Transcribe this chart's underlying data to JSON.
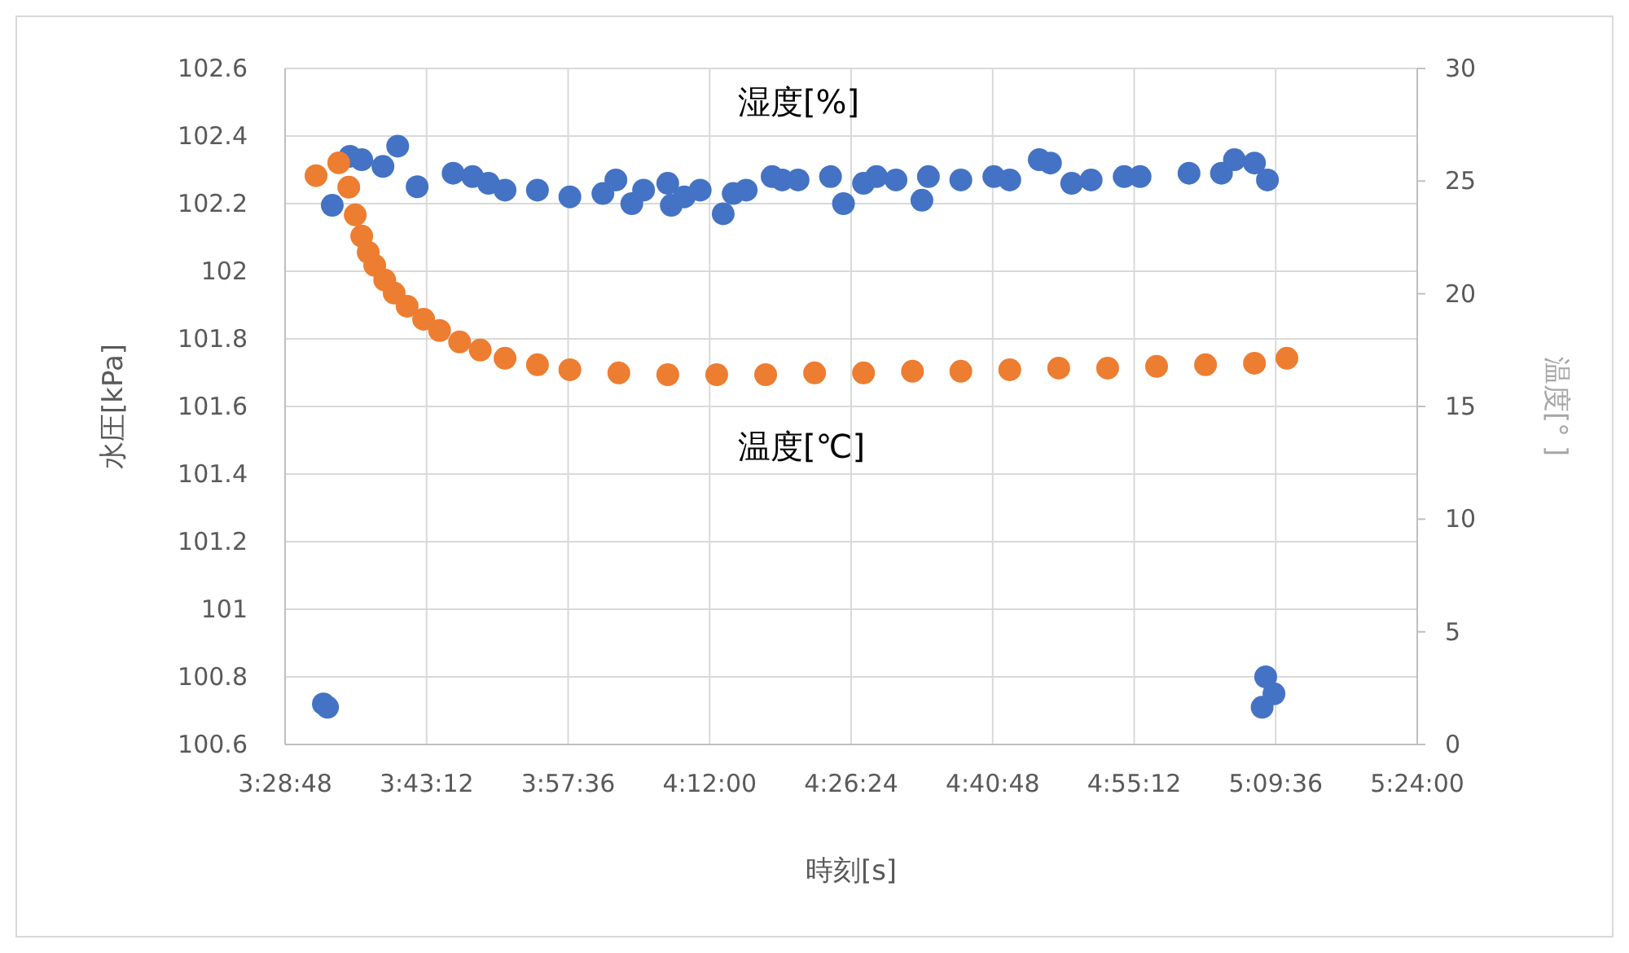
{
  "chart_data": {
    "type": "scatter",
    "xlabel": "時刻[s]",
    "ylabel": "水圧[kPa]",
    "y2label": "温度[° ]",
    "xlim": [
      3.48,
      5.4
    ],
    "xticks": [
      {
        "value": 3.48,
        "label": "3:28:48"
      },
      {
        "value": 3.72,
        "label": "3:43:12"
      },
      {
        "value": 3.96,
        "label": "3:57:36"
      },
      {
        "value": 4.2,
        "label": "4:12:00"
      },
      {
        "value": 4.44,
        "label": "4:26:24"
      },
      {
        "value": 4.68,
        "label": "4:40:48"
      },
      {
        "value": 4.92,
        "label": "4:55:12"
      },
      {
        "value": 5.16,
        "label": "5:09:36"
      },
      {
        "value": 5.4,
        "label": "5:24:00"
      }
    ],
    "ylim": [
      100.6,
      102.6
    ],
    "yticks": [
      100.6,
      100.8,
      101,
      101.2,
      101.4,
      101.6,
      101.8,
      102,
      102.2,
      102.4,
      102.6
    ],
    "y2lim": [
      0,
      30
    ],
    "y2ticks": [
      0,
      5,
      10,
      15,
      20,
      25,
      30
    ],
    "grid": true,
    "marker": "circle",
    "series": [
      {
        "name": "湿度[%]",
        "color": "#4472c4",
        "x": [
          3.545,
          3.552,
          3.56,
          3.59,
          3.61,
          3.646,
          3.671,
          3.704,
          3.765,
          3.798,
          3.825,
          3.853,
          3.908,
          3.963,
          4.019,
          4.041,
          4.068,
          4.088,
          4.129,
          4.135,
          4.157,
          4.184,
          4.223,
          4.24,
          4.262,
          4.306,
          4.323,
          4.35,
          4.405,
          4.427,
          4.461,
          4.483,
          4.516,
          4.56,
          4.571,
          4.626,
          4.682,
          4.709,
          4.759,
          4.778,
          4.814,
          4.847,
          4.903,
          4.93,
          5.013,
          5.068,
          5.09,
          5.124,
          5.146,
          5.137,
          5.143,
          5.157
        ],
        "values": [
          100.72,
          100.71,
          102.195,
          102.34,
          102.33,
          102.31,
          102.37,
          102.25,
          102.29,
          102.28,
          102.26,
          102.24,
          102.24,
          102.22,
          102.23,
          102.27,
          102.2,
          102.24,
          102.26,
          102.195,
          102.22,
          102.24,
          102.17,
          102.23,
          102.24,
          102.28,
          102.27,
          102.27,
          102.28,
          102.2,
          102.26,
          102.28,
          102.27,
          102.21,
          102.28,
          102.27,
          102.28,
          102.27,
          102.33,
          102.32,
          102.26,
          102.27,
          102.28,
          102.28,
          102.29,
          102.29,
          102.33,
          102.32,
          102.27,
          100.71,
          100.8,
          100.75
        ]
      },
      {
        "name": "温度[℃]",
        "color": "#ed7d31",
        "axis": "y2",
        "x": [
          3.5325,
          3.571,
          3.588,
          3.599,
          3.61,
          3.621,
          3.632,
          3.649,
          3.665,
          3.687,
          3.715,
          3.742,
          3.776,
          3.811,
          3.853,
          3.908,
          3.963,
          4.046,
          4.129,
          4.212,
          4.295,
          4.378,
          4.461,
          4.544,
          4.626,
          4.709,
          4.792,
          4.875,
          4.958,
          5.041,
          5.124,
          5.179
        ],
        "values": [
          25.24,
          25.81,
          24.73,
          23.5,
          22.56,
          21.84,
          21.26,
          20.61,
          20.03,
          19.45,
          18.87,
          18.37,
          17.86,
          17.5,
          17.14,
          16.85,
          16.63,
          16.49,
          16.41,
          16.41,
          16.41,
          16.49,
          16.49,
          16.56,
          16.56,
          16.63,
          16.7,
          16.7,
          16.78,
          16.85,
          16.92,
          17.14
        ]
      }
    ]
  }
}
